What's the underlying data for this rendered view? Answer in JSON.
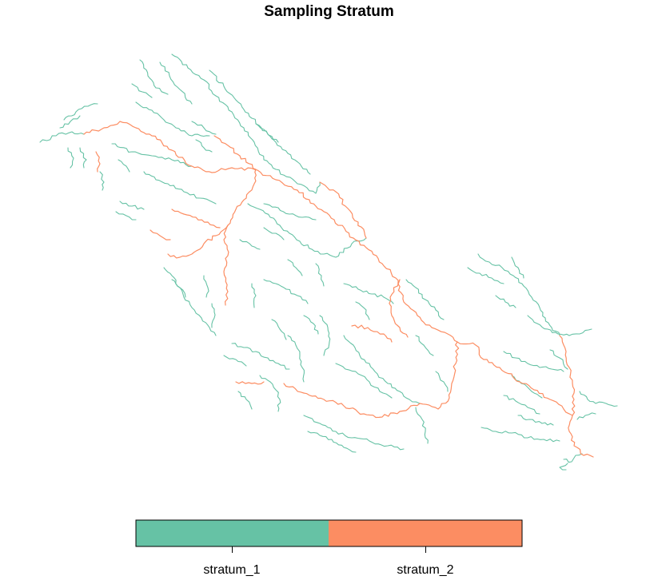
{
  "title": "Sampling Stratum",
  "legend": {
    "items": [
      {
        "label": "stratum_1",
        "color": "#66C2A5"
      },
      {
        "label": "stratum_2",
        "color": "#FC8D62"
      }
    ]
  },
  "map": {
    "background": "#FFFFFF",
    "feature_type": "stream network (polylines)",
    "strata_colors": {
      "stratum_1": "#66C2A5",
      "stratum_2": "#FC8D62"
    }
  }
}
